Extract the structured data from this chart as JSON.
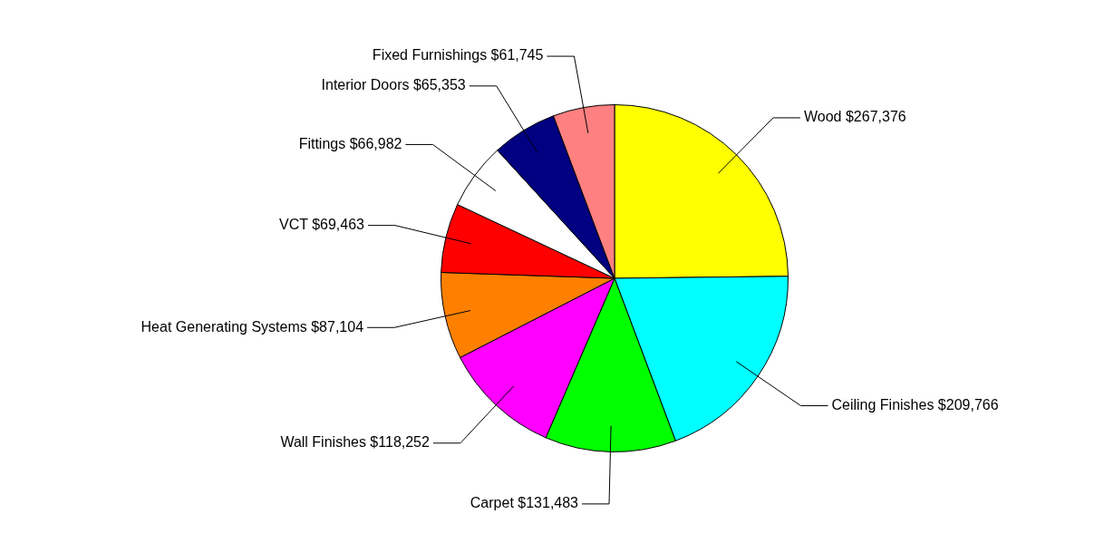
{
  "chart_data": {
    "type": "pie",
    "categories": [
      "Wood",
      "Ceiling Finishes",
      "Carpet",
      "Wall Finishes",
      "Heat Generating Systems",
      "VCT",
      "Fittings",
      "Interior Doors",
      "Fixed Furnishings"
    ],
    "values": [
      267376,
      209766,
      131483,
      118252,
      87104,
      69463,
      66982,
      65353,
      61745
    ],
    "value_labels": [
      "$267,376",
      "$209,766",
      "$131,483",
      "$118,252",
      "$87,104",
      "$69,463",
      "$66,982",
      "$65,353",
      "$61,745"
    ],
    "colors": [
      "#ffff00",
      "#00ffff",
      "#00ff00",
      "#ff00ff",
      "#ff8000",
      "#ff0000",
      "#ffffff",
      "#000080",
      "#ff8080"
    ],
    "legend": false
  }
}
